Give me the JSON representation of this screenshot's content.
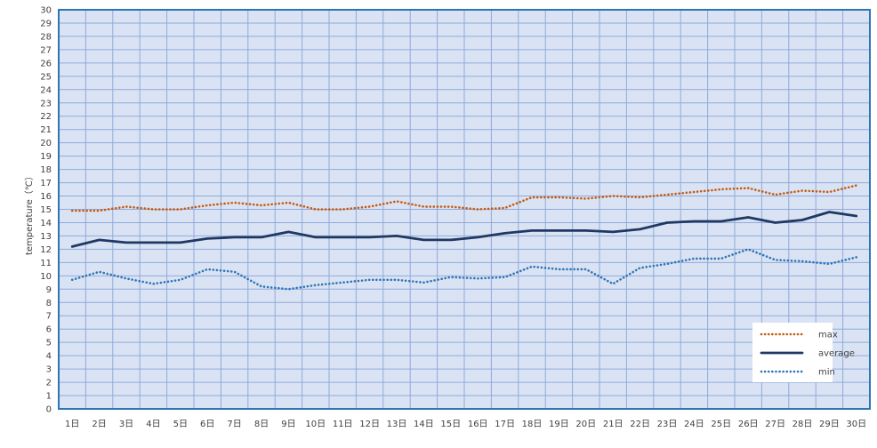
{
  "chart_data": {
    "type": "line",
    "title": "",
    "xlabel": "",
    "ylabel": "temperature（℃）",
    "ylim": [
      0,
      30
    ],
    "ytick_step": 1,
    "grid": true,
    "legend_position": "bottom-right",
    "categories": [
      "1日",
      "2日",
      "3日",
      "4日",
      "5日",
      "6日",
      "7日",
      "8日",
      "9日",
      "10日",
      "11日",
      "12日",
      "13日",
      "14日",
      "15日",
      "16日",
      "17日",
      "18日",
      "19日",
      "20日",
      "21日",
      "22日",
      "23日",
      "24日",
      "25日",
      "26日",
      "27日",
      "28日",
      "29日",
      "30日"
    ],
    "series": [
      {
        "name": "max",
        "style": "dotted",
        "color": "#c55a11",
        "values": [
          14.9,
          14.9,
          15.2,
          15.0,
          15.0,
          15.3,
          15.5,
          15.3,
          15.5,
          15.0,
          15.0,
          15.2,
          15.6,
          15.2,
          15.2,
          15.0,
          15.1,
          15.9,
          15.9,
          15.8,
          16.0,
          15.9,
          16.1,
          16.3,
          16.5,
          16.6,
          16.1,
          16.4,
          16.3,
          16.8
        ]
      },
      {
        "name": "average",
        "style": "solid",
        "color": "#1f3864",
        "values": [
          12.2,
          12.7,
          12.5,
          12.5,
          12.5,
          12.8,
          12.9,
          12.9,
          13.3,
          12.9,
          12.9,
          12.9,
          13.0,
          12.7,
          12.7,
          12.9,
          13.2,
          13.4,
          13.4,
          13.4,
          13.3,
          13.5,
          14.0,
          14.1,
          14.1,
          14.4,
          14.0,
          14.2,
          14.8,
          14.5
        ]
      },
      {
        "name": "min",
        "style": "dotted",
        "color": "#2e75b6",
        "values": [
          9.7,
          10.3,
          9.8,
          9.4,
          9.7,
          10.5,
          10.3,
          9.2,
          9.0,
          9.3,
          9.5,
          9.7,
          9.7,
          9.5,
          9.9,
          9.8,
          9.9,
          10.7,
          10.5,
          10.5,
          9.4,
          10.6,
          10.9,
          11.3,
          11.3,
          12.0,
          11.2,
          11.1,
          10.9,
          11.4
        ]
      }
    ]
  },
  "colors": {
    "plot_background": "#dae3f3",
    "grid": "#8faadc",
    "plot_border": "#2e75b6"
  }
}
